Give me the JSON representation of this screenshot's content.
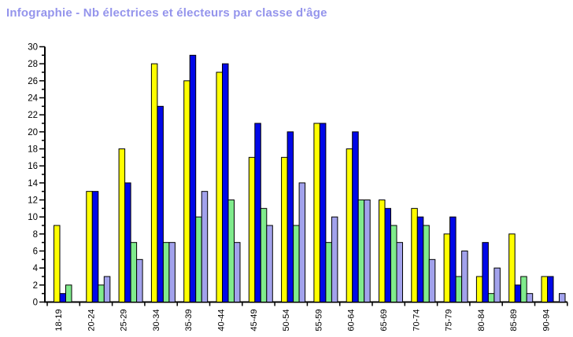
{
  "chart_data": {
    "type": "bar",
    "title": "Infographie - Nb électrices et électeurs par classe d'âge",
    "title_color": "#9494EC",
    "categories": [
      "18-19",
      "20-24",
      "25-29",
      "30-34",
      "35-39",
      "40-44",
      "45-49",
      "50-54",
      "55-59",
      "60-64",
      "65-69",
      "70-74",
      "75-79",
      "80-84",
      "85-89",
      "90-94"
    ],
    "series": [
      {
        "name": "yellow",
        "color": "#FFFF00",
        "values": [
          9,
          13,
          18,
          28,
          26,
          27,
          17,
          17,
          21,
          18,
          12,
          11,
          8,
          3,
          8,
          3
        ]
      },
      {
        "name": "blue",
        "color": "#0008E8",
        "values": [
          1,
          13,
          14,
          23,
          29,
          28,
          21,
          20,
          21,
          20,
          11,
          10,
          10,
          7,
          2,
          3
        ]
      },
      {
        "name": "green",
        "color": "#80EB8C",
        "values": [
          2,
          2,
          7,
          7,
          10,
          12,
          11,
          9,
          7,
          12,
          9,
          9,
          3,
          1,
          3,
          0
        ]
      },
      {
        "name": "lavender",
        "color": "#A2A2EC",
        "values": [
          0,
          3,
          5,
          7,
          13,
          7,
          9,
          14,
          10,
          12,
          7,
          5,
          6,
          4,
          1,
          1
        ]
      }
    ],
    "xlabel": "",
    "ylabel": "",
    "ylim": [
      0,
      30
    ],
    "y_ticks_labeled": [
      0,
      2,
      4,
      6,
      8,
      10,
      12,
      14,
      16,
      18,
      20,
      22,
      24,
      26,
      28,
      30
    ],
    "y_minor_tick_step": 1,
    "grid": false,
    "legend": false,
    "axis_color": "#000000",
    "bar_outline": "#000000",
    "background": "#FFFFFF"
  }
}
